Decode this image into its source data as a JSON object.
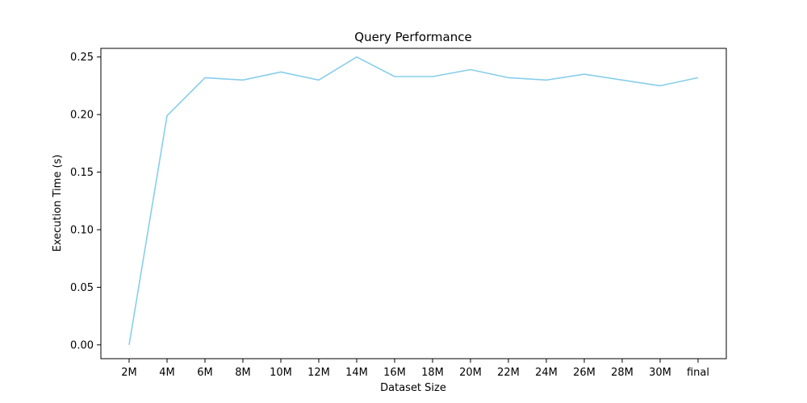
{
  "chart_data": {
    "type": "line",
    "title": "Query Performance",
    "xlabel": "Dataset Size",
    "ylabel": "Execution Time (s)",
    "categories": [
      "2M",
      "4M",
      "6M",
      "8M",
      "10M",
      "12M",
      "14M",
      "16M",
      "18M",
      "20M",
      "22M",
      "24M",
      "26M",
      "28M",
      "30M",
      "final"
    ],
    "series": [
      {
        "values": [
          0.0,
          0.199,
          0.232,
          0.23,
          0.237,
          0.23,
          0.25,
          0.233,
          0.233,
          0.239,
          0.232,
          0.23,
          0.235,
          0.23,
          0.225,
          0.232
        ],
        "color": "#87CEEB"
      }
    ],
    "ylim": [
      -0.012,
      0.2575
    ],
    "yticks": [
      "0.00",
      "0.05",
      "0.10",
      "0.15",
      "0.20",
      "0.25"
    ],
    "grid": false,
    "legend": "none"
  }
}
